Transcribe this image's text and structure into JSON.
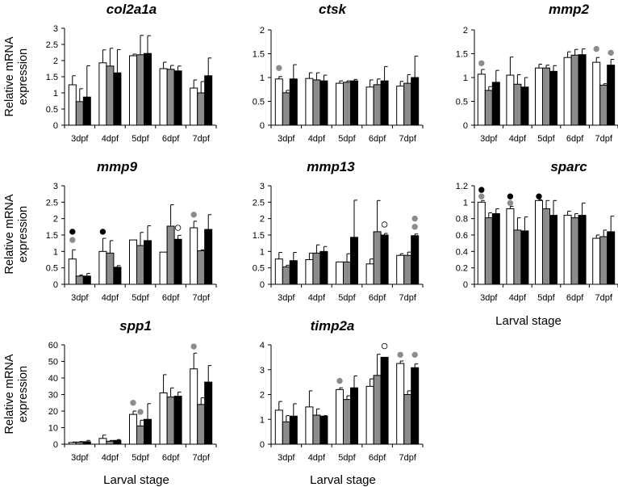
{
  "figure": {
    "y_axis_title_line1": "Relative mRNA",
    "y_axis_title_line2": "expression",
    "x_axis_title": "Larval stage"
  },
  "colors": {
    "series_1": "#ffffff",
    "series_2": "#8c8c8c",
    "series_3": "#000000",
    "marker_white": "#ffffff",
    "marker_gray": "#8c8c8c",
    "marker_black": "#000000"
  },
  "chart_data": [
    {
      "type": "bar",
      "title": "col2a1a",
      "categories": [
        "3dpf",
        "4dpf",
        "5dpf",
        "6dpf",
        "7dpf"
      ],
      "ylim": [
        0,
        3
      ],
      "yticks": [
        0,
        0.5,
        1,
        1.5,
        2,
        2.5,
        3
      ],
      "ylabel": "Relative mRNA expression",
      "xlabel": "",
      "series": [
        {
          "name": "series 1",
          "values": [
            1.25,
            1.93,
            2.15,
            1.75,
            1.15
          ],
          "errors": [
            0.28,
            0.4,
            0.05,
            0.2,
            0.25
          ]
        },
        {
          "name": "series 2",
          "values": [
            0.73,
            1.83,
            2.18,
            1.73,
            1.0
          ],
          "errors": [
            0.4,
            0.55,
            0.6,
            0.12,
            0.35
          ]
        },
        {
          "name": "series 3",
          "values": [
            0.87,
            1.62,
            2.22,
            1.68,
            1.53
          ],
          "errors": [
            0.97,
            0.72,
            0.55,
            0.15,
            0.55
          ]
        }
      ],
      "markers": []
    },
    {
      "type": "bar",
      "title": "ctsk",
      "categories": [
        "3dpf",
        "4dpf",
        "5dpf",
        "6dpf",
        "7dpf"
      ],
      "ylim": [
        0,
        2
      ],
      "yticks": [
        0,
        0.5,
        1,
        1.5,
        2
      ],
      "ylabel": "",
      "xlabel": "",
      "series": [
        {
          "name": "series 1",
          "values": [
            0.97,
            0.98,
            0.88,
            0.8,
            0.82
          ],
          "errors": [
            0.05,
            0.12,
            0.05,
            0.15,
            0.1
          ]
        },
        {
          "name": "series 2",
          "values": [
            0.68,
            0.95,
            0.9,
            0.85,
            0.88
          ],
          "errors": [
            0.05,
            0.15,
            0.03,
            0.12,
            0.18
          ]
        },
        {
          "name": "series 3",
          "values": [
            0.97,
            0.93,
            0.93,
            0.93,
            1.0
          ],
          "errors": [
            0.3,
            0.12,
            0.03,
            0.3,
            0.45
          ]
        }
      ],
      "markers": [
        {
          "category": 0,
          "series": 0,
          "color": "gray",
          "value": 1.2
        }
      ]
    },
    {
      "type": "bar",
      "title": "mmp2",
      "categories": [
        "3dpf",
        "4dpf",
        "5dpf",
        "6dpf",
        "7dpf"
      ],
      "ylim": [
        0,
        2
      ],
      "yticks": [
        0,
        0.5,
        1,
        1.5,
        2
      ],
      "ylabel": "",
      "xlabel": "",
      "series": [
        {
          "name": "series 1",
          "values": [
            1.07,
            1.05,
            1.2,
            1.42,
            1.32
          ],
          "errors": [
            0.1,
            0.38,
            0.08,
            0.12,
            0.1
          ]
        },
        {
          "name": "series 2",
          "values": [
            0.73,
            0.86,
            1.2,
            1.47,
            0.84
          ],
          "errors": [
            0.08,
            0.2,
            0.06,
            0.12,
            0.03
          ]
        },
        {
          "name": "series 3",
          "values": [
            0.9,
            0.8,
            1.13,
            1.48,
            1.26
          ],
          "errors": [
            0.25,
            0.2,
            0.12,
            0.12,
            0.12
          ]
        }
      ],
      "markers": [
        {
          "category": 0,
          "series": 0,
          "color": "gray",
          "value": 1.3
        },
        {
          "category": 4,
          "series": 0,
          "color": "gray",
          "value": 1.6
        },
        {
          "category": 4,
          "series": 2,
          "color": "gray",
          "value": 1.52
        }
      ]
    },
    {
      "type": "bar",
      "title": "mmp9",
      "categories": [
        "3dpf",
        "4dpf",
        "5dpf",
        "6dpf",
        "7dpf"
      ],
      "ylim": [
        0,
        3
      ],
      "yticks": [
        0,
        0.5,
        1,
        1.5,
        2,
        2.5,
        3
      ],
      "ylabel": "Relative mRNA expression",
      "xlabel": "",
      "series": [
        {
          "name": "series 1",
          "values": [
            0.77,
            1.0,
            1.35,
            0.98,
            1.72
          ],
          "errors": [
            0.28,
            0.4,
            0.0,
            0.0,
            0.2
          ]
        },
        {
          "name": "series 2",
          "values": [
            0.25,
            0.95,
            1.18,
            1.77,
            1.02
          ],
          "errors": [
            0.03,
            0.38,
            0.4,
            0.65,
            0.03
          ]
        },
        {
          "name": "series 3",
          "values": [
            0.25,
            0.52,
            1.33,
            1.37,
            1.67
          ],
          "errors": [
            0.08,
            0.05,
            0.45,
            0.12,
            0.45
          ]
        }
      ],
      "markers": [
        {
          "category": 0,
          "series": 0,
          "color": "black",
          "value": 1.6
        },
        {
          "category": 0,
          "series": 0,
          "color": "gray",
          "value": 1.35
        },
        {
          "category": 1,
          "series": 0,
          "color": "black",
          "value": 1.6
        },
        {
          "category": 3,
          "series": 2,
          "color": "white",
          "value": 1.72
        },
        {
          "category": 4,
          "series": 0,
          "color": "gray",
          "value": 2.12
        }
      ]
    },
    {
      "type": "bar",
      "title": "mmp13",
      "categories": [
        "3dpf",
        "4dpf",
        "5dpf",
        "6dpf",
        "7dpf"
      ],
      "ylim": [
        0,
        3
      ],
      "yticks": [
        0,
        0.5,
        1,
        1.5,
        2,
        2.5,
        3
      ],
      "ylabel": "",
      "xlabel": "",
      "series": [
        {
          "name": "series 1",
          "values": [
            0.77,
            0.75,
            0.68,
            0.62,
            0.88
          ],
          "errors": [
            0.2,
            0.2,
            0.0,
            0.15,
            0.05
          ]
        },
        {
          "name": "series 2",
          "values": [
            0.53,
            0.95,
            0.68,
            1.6,
            0.88
          ],
          "errors": [
            0.05,
            0.25,
            0.25,
            0.95,
            0.1
          ]
        },
        {
          "name": "series 3",
          "values": [
            0.72,
            1.0,
            1.43,
            1.5,
            1.48
          ],
          "errors": [
            0.25,
            0.15,
            1.13,
            0.05,
            0.05
          ]
        }
      ],
      "markers": [
        {
          "category": 3,
          "series": 2,
          "color": "white",
          "value": 1.82
        },
        {
          "category": 4,
          "series": 2,
          "color": "gray",
          "value": 2.0
        },
        {
          "category": 4,
          "series": 2,
          "color": "gray",
          "value": 1.75
        }
      ]
    },
    {
      "type": "bar",
      "title": "sparc",
      "categories": [
        "3dpf",
        "4dpf",
        "5dpf",
        "6dpf",
        "7dpf"
      ],
      "ylim": [
        0,
        1.2
      ],
      "yticks": [
        0,
        0.2,
        0.4,
        0.6,
        0.8,
        1,
        1.2
      ],
      "ylabel": "",
      "xlabel": "Larval stage",
      "series": [
        {
          "name": "series 1",
          "values": [
            1.0,
            0.92,
            1.02,
            0.84,
            0.56
          ],
          "errors": [
            0.02,
            0.03,
            0.01,
            0.05,
            0.04
          ]
        },
        {
          "name": "series 2",
          "values": [
            0.81,
            0.66,
            0.92,
            0.81,
            0.58
          ],
          "errors": [
            0.06,
            0.15,
            0.1,
            0.05,
            0.08
          ]
        },
        {
          "name": "series 3",
          "values": [
            0.86,
            0.65,
            0.84,
            0.84,
            0.64
          ],
          "errors": [
            0.06,
            0.17,
            0.18,
            0.15,
            0.19
          ]
        }
      ],
      "markers": [
        {
          "category": 0,
          "series": 0,
          "color": "black",
          "value": 1.15
        },
        {
          "category": 0,
          "series": 0,
          "color": "gray",
          "value": 1.07
        },
        {
          "category": 1,
          "series": 0,
          "color": "black",
          "value": 1.07
        },
        {
          "category": 1,
          "series": 0,
          "color": "gray",
          "value": 0.99
        },
        {
          "category": 2,
          "series": 0,
          "color": "black",
          "value": 1.07
        }
      ]
    },
    {
      "type": "bar",
      "title": "spp1",
      "categories": [
        "3dpf",
        "4dpf",
        "5dpf",
        "6dpf",
        "7dpf"
      ],
      "ylim": [
        0,
        60
      ],
      "yticks": [
        0,
        10,
        20,
        30,
        40,
        50,
        60
      ],
      "ylabel": "Relative mRNA expression",
      "xlabel": "Larval stage",
      "series": [
        {
          "name": "series 1",
          "values": [
            1.0,
            3.5,
            18.0,
            31.0,
            45.5
          ],
          "errors": [
            0.3,
            2.0,
            2.0,
            11.0,
            9.5
          ]
        },
        {
          "name": "series 2",
          "values": [
            1.3,
            1.8,
            11.0,
            28.5,
            24.0
          ],
          "errors": [
            0.3,
            0.5,
            3.5,
            5.5,
            4.0
          ]
        },
        {
          "name": "series 3",
          "values": [
            1.5,
            2.3,
            15.0,
            29.0,
            37.5
          ],
          "errors": [
            0.8,
            0.5,
            9.5,
            2.5,
            10.0
          ]
        }
      ],
      "markers": [
        {
          "category": 2,
          "series": 0,
          "color": "gray",
          "value": 25.0
        },
        {
          "category": 2,
          "series": 1,
          "color": "gray",
          "value": 19.5
        },
        {
          "category": 4,
          "series": 0,
          "color": "gray",
          "value": 59.0
        }
      ]
    },
    {
      "type": "bar",
      "title": "timp2a",
      "categories": [
        "3dpf",
        "4dpf",
        "5dpf",
        "6dpf",
        "7dpf"
      ],
      "ylim": [
        0,
        4
      ],
      "yticks": [
        0,
        1,
        2,
        3,
        4
      ],
      "ylabel": "",
      "xlabel": "Larval stage",
      "series": [
        {
          "name": "series 1",
          "values": [
            1.37,
            1.5,
            2.2,
            2.33,
            3.25
          ],
          "errors": [
            0.35,
            0.65,
            0.07,
            0.3,
            0.1
          ]
        },
        {
          "name": "series 2",
          "values": [
            0.9,
            1.17,
            1.8,
            2.77,
            2.0
          ],
          "errors": [
            0.25,
            0.25,
            0.15,
            0.85,
            0.15
          ]
        },
        {
          "name": "series 3",
          "values": [
            1.13,
            1.13,
            2.27,
            3.5,
            3.08
          ],
          "errors": [
            0.5,
            0.02,
            0.48,
            0.0,
            0.15
          ]
        }
      ],
      "markers": [
        {
          "category": 2,
          "series": 0,
          "color": "gray",
          "value": 2.55
        },
        {
          "category": 3,
          "series": 2,
          "color": "white",
          "value": 3.95
        },
        {
          "category": 4,
          "series": 0,
          "color": "gray",
          "value": 3.6
        },
        {
          "category": 4,
          "series": 2,
          "color": "gray",
          "value": 3.6
        }
      ]
    }
  ]
}
